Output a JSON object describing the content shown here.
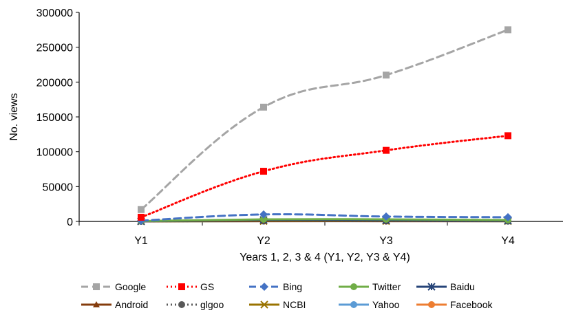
{
  "chart_data": {
    "type": "line",
    "title": "",
    "xlabel": "Years 1, 2, 3 & 4 (Y1, Y2, Y3 & Y4)",
    "ylabel": "No. views",
    "categories": [
      "Y1",
      "Y2",
      "Y3",
      "Y4"
    ],
    "ylim": [
      0,
      300000
    ],
    "yticks": [
      0,
      50000,
      100000,
      150000,
      200000,
      250000,
      300000
    ],
    "grid": false,
    "legend_position": "bottom",
    "series": [
      {
        "name": "Google",
        "values": [
          17000,
          164000,
          210000,
          275000
        ],
        "color": "#A5A5A5",
        "dash": "dash",
        "marker": "square"
      },
      {
        "name": "GS",
        "values": [
          6000,
          72000,
          102000,
          123000
        ],
        "color": "#FF0000",
        "dash": "dot",
        "marker": "square"
      },
      {
        "name": "Bing",
        "values": [
          1000,
          10000,
          7000,
          6000
        ],
        "color": "#4472C4",
        "dash": "dash",
        "marker": "diamond"
      },
      {
        "name": "Twitter",
        "values": [
          500,
          3000,
          3000,
          2000
        ],
        "color": "#70AD47",
        "dash": "solid",
        "marker": "circle"
      },
      {
        "name": "Baidu",
        "values": [
          300,
          2000,
          1500,
          1000
        ],
        "color": "#264478",
        "dash": "solid",
        "marker": "star"
      },
      {
        "name": "Android",
        "values": [
          200,
          1000,
          1000,
          800
        ],
        "color": "#843C0C",
        "dash": "solid",
        "marker": "triangle"
      },
      {
        "name": "glgoo",
        "values": [
          100,
          800,
          600,
          500
        ],
        "color": "#595959",
        "dash": "dot",
        "marker": "circle"
      },
      {
        "name": "NCBI",
        "values": [
          100,
          500,
          500,
          400
        ],
        "color": "#997300",
        "dash": "solid",
        "marker": "x"
      },
      {
        "name": "Yahoo",
        "values": [
          100,
          400,
          400,
          300
        ],
        "color": "#5B9BD5",
        "dash": "solid",
        "marker": "circle"
      },
      {
        "name": "Facebook",
        "values": [
          100,
          300,
          300,
          200
        ],
        "color": "#ED7D31",
        "dash": "solid",
        "marker": "circle"
      }
    ]
  }
}
